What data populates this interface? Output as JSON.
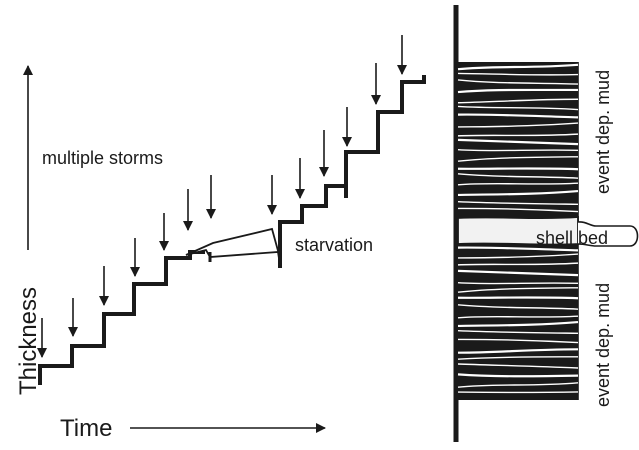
{
  "labels": {
    "y_axis": "Thickness",
    "x_axis": "Time",
    "storms": "multiple storms",
    "starvation": "starvation",
    "shell_bed": "shell bed",
    "mud_upper": "event dep. mud",
    "mud_lower": "event dep. mud"
  },
  "colors": {
    "ink": "#1a1a1a",
    "paper": "#ffffff",
    "shell_bed_fill": "#f2f2f2"
  }
}
